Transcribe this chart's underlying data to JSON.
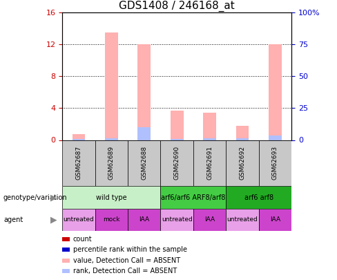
{
  "title": "GDS1408 / 246168_at",
  "samples": [
    "GSM62687",
    "GSM62689",
    "GSM62688",
    "GSM62690",
    "GSM62691",
    "GSM62692",
    "GSM62693"
  ],
  "pink_bar_heights": [
    0.7,
    13.5,
    12.0,
    3.7,
    3.4,
    1.8,
    12.0
  ],
  "blue_bar_heights": [
    0.15,
    0.22,
    1.6,
    0.15,
    0.18,
    0.22,
    0.55
  ],
  "left_ylim": [
    0,
    16
  ],
  "right_ylim": [
    0,
    100
  ],
  "left_yticks": [
    0,
    4,
    8,
    12,
    16
  ],
  "right_yticks": [
    0,
    25,
    50,
    75,
    100
  ],
  "right_yticklabels": [
    "0",
    "25",
    "50",
    "75",
    "100%"
  ],
  "genotype_groups": [
    {
      "label": "wild type",
      "start": 0,
      "end": 3,
      "color": "#c8f0c8"
    },
    {
      "label": "arf6/arf6 ARF8/arf8",
      "start": 3,
      "end": 5,
      "color": "#44cc44"
    },
    {
      "label": "arf6 arf8",
      "start": 5,
      "end": 7,
      "color": "#22aa22"
    }
  ],
  "agent_groups": [
    {
      "label": "untreated",
      "start": 0,
      "end": 1,
      "color": "#e8a0e8"
    },
    {
      "label": "mock",
      "start": 1,
      "end": 2,
      "color": "#cc44cc"
    },
    {
      "label": "IAA",
      "start": 2,
      "end": 3,
      "color": "#cc44cc"
    },
    {
      "label": "untreated",
      "start": 3,
      "end": 4,
      "color": "#e8a0e8"
    },
    {
      "label": "IAA",
      "start": 4,
      "end": 5,
      "color": "#cc44cc"
    },
    {
      "label": "untreated",
      "start": 5,
      "end": 6,
      "color": "#e8a0e8"
    },
    {
      "label": "IAA",
      "start": 6,
      "end": 7,
      "color": "#cc44cc"
    }
  ],
  "legend_items": [
    {
      "label": "count",
      "color": "#cc0000"
    },
    {
      "label": "percentile rank within the sample",
      "color": "#0000cc"
    },
    {
      "label": "value, Detection Call = ABSENT",
      "color": "#ffb0b0"
    },
    {
      "label": "rank, Detection Call = ABSENT",
      "color": "#b0c0ff"
    }
  ],
  "bar_width": 0.4,
  "pink_color": "#ffb0b0",
  "blue_color": "#b0c0ff",
  "left_tick_color": "#cc0000",
  "right_tick_color": "#0000cc",
  "sample_bg_color": "#c8c8c8",
  "background_color": "#ffffff"
}
